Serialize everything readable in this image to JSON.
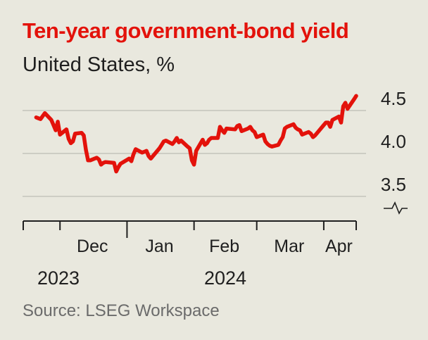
{
  "header": {
    "title": "Ten-year government-bond yield",
    "subtitle": "United States, %"
  },
  "footer": {
    "source": "Source: LSEG Workspace"
  },
  "colors": {
    "line": "#e3120b",
    "title": "#e3120b",
    "grid": "#bdbdb5",
    "axis": "#1f1f1f",
    "background": "#e9e8de"
  },
  "chart_data": {
    "type": "line",
    "title": "Ten-year government-bond yield",
    "subtitle": "United States, %",
    "xlabel": "",
    "ylabel": "",
    "ylim": [
      3.3,
      4.6
    ],
    "y_ticks": [
      3.5,
      4.0,
      4.5
    ],
    "y_tick_labels": [
      "3.5",
      "4.0",
      "4.5"
    ],
    "y_axis_break": true,
    "y_axis_side": "right",
    "grid": true,
    "x_tick_labels": [
      "Dec",
      "Jan",
      "Feb",
      "Mar",
      "Apr"
    ],
    "year_labels": [
      "2023",
      "2024"
    ],
    "series": [
      {
        "x": [
          "2023-11-20",
          "2023-11-21",
          "2023-11-22",
          "2023-11-24",
          "2023-11-27",
          "2023-11-28",
          "2023-11-29",
          "2023-11-30",
          "2023-12-01",
          "2023-12-04",
          "2023-12-05",
          "2023-12-06",
          "2023-12-07",
          "2023-12-08",
          "2023-12-11",
          "2023-12-12",
          "2023-12-13",
          "2023-12-14",
          "2023-12-15",
          "2023-12-18",
          "2023-12-19",
          "2023-12-20",
          "2023-12-21",
          "2023-12-22",
          "2023-12-26",
          "2023-12-27",
          "2023-12-28",
          "2023-12-29",
          "2024-01-02",
          "2024-01-03",
          "2024-01-04",
          "2024-01-05",
          "2024-01-08",
          "2024-01-09",
          "2024-01-10",
          "2024-01-11",
          "2024-01-12",
          "2024-01-16",
          "2024-01-17",
          "2024-01-18",
          "2024-01-19",
          "2024-01-22",
          "2024-01-23",
          "2024-01-24",
          "2024-01-25",
          "2024-01-26",
          "2024-01-29",
          "2024-01-30",
          "2024-01-31",
          "2024-02-01",
          "2024-02-02",
          "2024-02-05",
          "2024-02-06",
          "2024-02-07",
          "2024-02-08",
          "2024-02-09",
          "2024-02-12",
          "2024-02-13",
          "2024-02-14",
          "2024-02-15",
          "2024-02-16",
          "2024-02-20",
          "2024-02-21",
          "2024-02-22",
          "2024-02-23",
          "2024-02-26",
          "2024-02-27",
          "2024-02-28",
          "2024-02-29",
          "2024-03-01",
          "2024-03-04",
          "2024-03-05",
          "2024-03-06",
          "2024-03-07",
          "2024-03-08",
          "2024-03-11",
          "2024-03-12",
          "2024-03-13",
          "2024-03-14",
          "2024-03-15",
          "2024-03-18",
          "2024-03-19",
          "2024-03-20",
          "2024-03-21",
          "2024-03-22",
          "2024-03-25",
          "2024-03-26",
          "2024-03-27",
          "2024-03-28",
          "2024-04-01",
          "2024-04-02",
          "2024-04-03",
          "2024-04-04",
          "2024-04-05",
          "2024-04-08",
          "2024-04-09",
          "2024-04-10",
          "2024-04-11",
          "2024-04-12",
          "2024-04-15",
          "2024-04-16"
        ],
        "values": [
          4.42,
          4.41,
          4.4,
          4.47,
          4.39,
          4.33,
          4.27,
          4.37,
          4.22,
          4.28,
          4.17,
          4.12,
          4.14,
          4.23,
          4.24,
          4.21,
          4.04,
          3.92,
          3.92,
          3.95,
          3.93,
          3.87,
          3.89,
          3.9,
          3.89,
          3.79,
          3.84,
          3.88,
          3.94,
          3.91,
          3.99,
          4.05,
          4.01,
          4.02,
          4.03,
          3.97,
          3.94,
          4.06,
          4.1,
          4.14,
          4.15,
          4.11,
          4.14,
          4.18,
          4.13,
          4.15,
          4.08,
          4.06,
          3.92,
          3.87,
          4.03,
          4.16,
          4.1,
          4.12,
          4.16,
          4.18,
          4.18,
          4.31,
          4.27,
          4.24,
          4.29,
          4.28,
          4.32,
          4.33,
          4.26,
          4.29,
          4.31,
          4.27,
          4.25,
          4.19,
          4.22,
          4.14,
          4.11,
          4.09,
          4.08,
          4.1,
          4.15,
          4.19,
          4.29,
          4.31,
          4.34,
          4.3,
          4.28,
          4.27,
          4.22,
          4.25,
          4.23,
          4.19,
          4.21,
          4.33,
          4.36,
          4.36,
          4.31,
          4.39,
          4.43,
          4.36,
          4.55,
          4.59,
          4.52,
          4.63,
          4.67
        ]
      }
    ]
  }
}
